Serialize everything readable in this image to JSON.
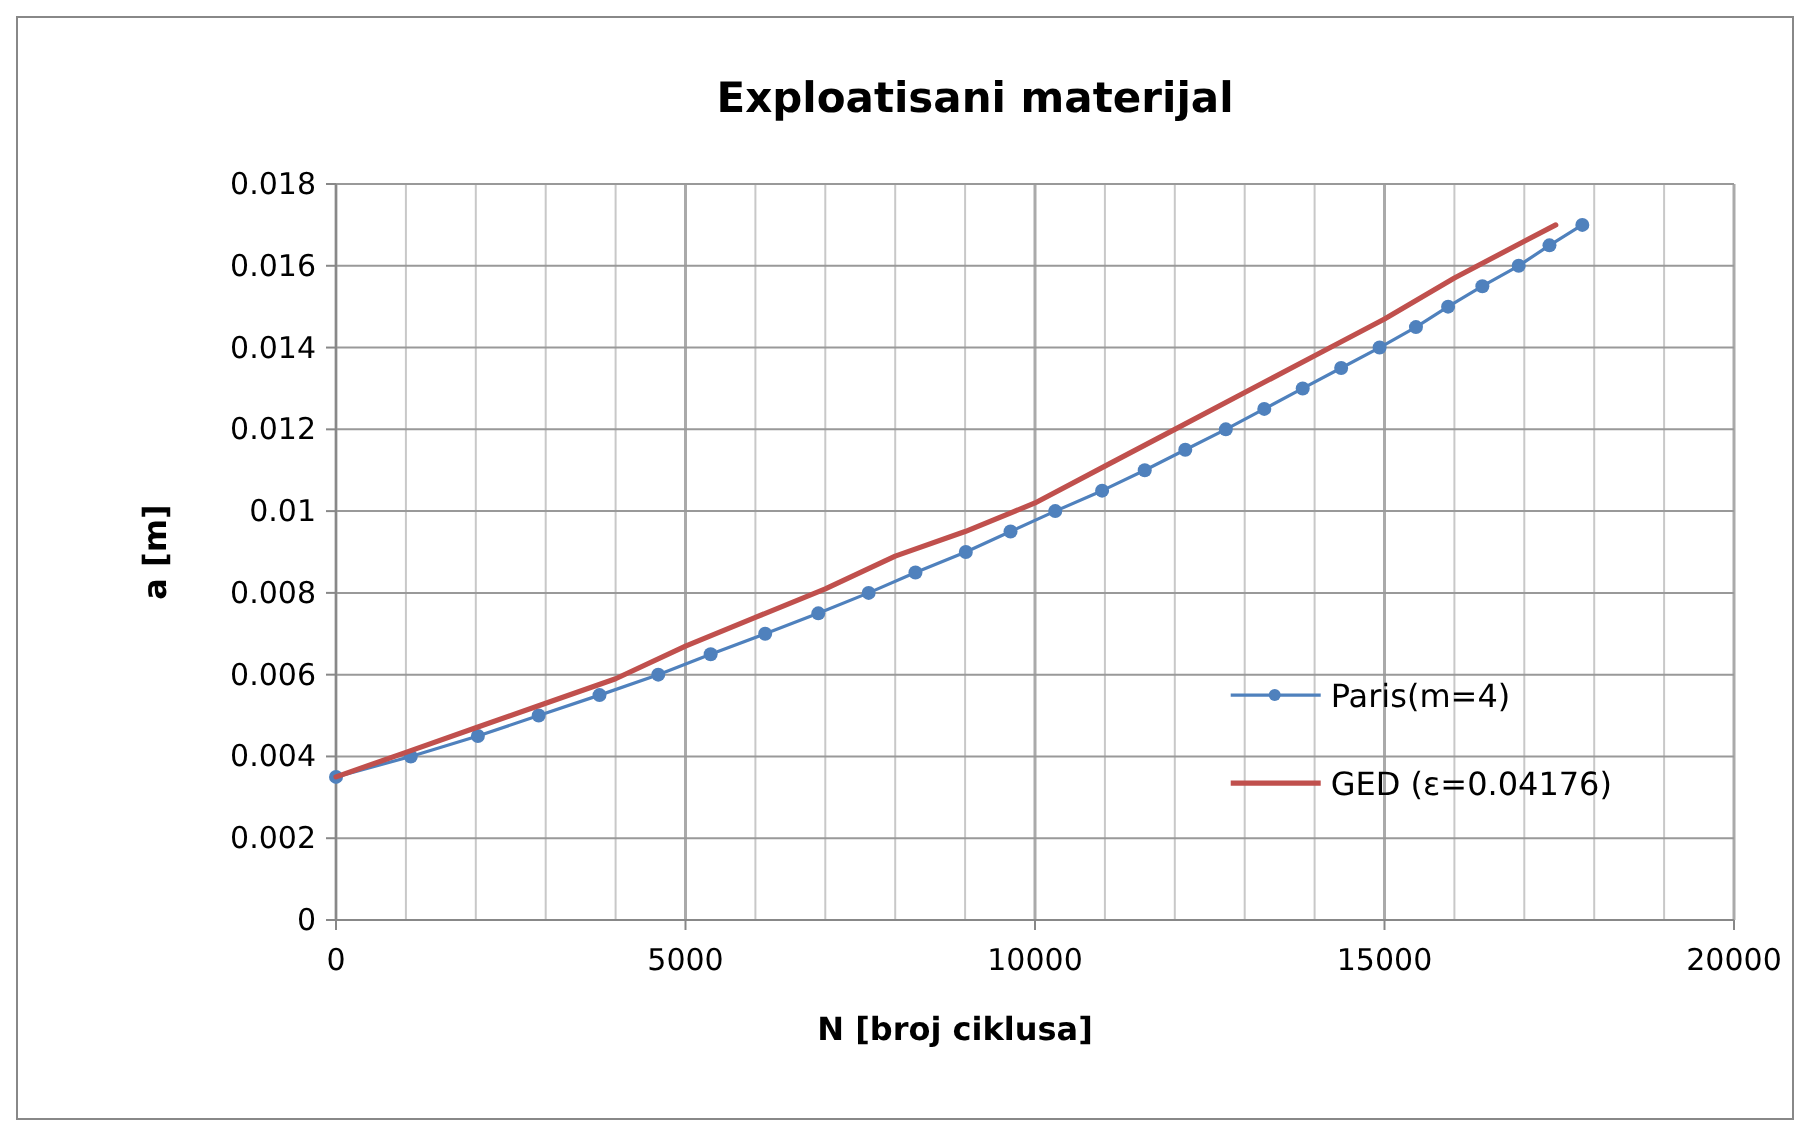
{
  "chart_data": {
    "type": "line",
    "title": "Exploatisani materijal",
    "xlabel": "N [broj ciklusa]",
    "ylabel": "a [m]",
    "xlim": [
      0,
      20000
    ],
    "ylim": [
      0,
      0.018
    ],
    "xticks": [
      0,
      {
        "value": 1000,
        "label": null
      },
      {
        "value": 2000,
        "label": null
      },
      {
        "value": 3000,
        "label": null
      },
      {
        "value": 4000,
        "label": null
      },
      5000,
      {
        "value": 6000,
        "label": null
      },
      {
        "value": 7000,
        "label": null
      },
      {
        "value": 8000,
        "label": null
      },
      {
        "value": 9000,
        "label": null
      },
      10000,
      {
        "value": 11000,
        "label": null
      },
      {
        "value": 12000,
        "label": null
      },
      {
        "value": 13000,
        "label": null
      },
      {
        "value": 14000,
        "label": null
      },
      15000,
      {
        "value": 16000,
        "label": null
      },
      {
        "value": 17000,
        "label": null
      },
      {
        "value": 18000,
        "label": null
      },
      {
        "value": 19000,
        "label": null
      },
      20000
    ],
    "yticks": [
      0,
      0.002,
      0.004,
      0.006,
      0.008,
      0.01,
      0.012,
      0.014,
      0.016,
      0.018
    ],
    "grid": true,
    "legend": "right",
    "series": [
      {
        "name": "Paris(m=4)",
        "color": "#4f81bd",
        "marker": "circle",
        "x": [
          0,
          1070,
          2030,
          2900,
          3770,
          4610,
          5360,
          6140,
          6900,
          7620,
          8290,
          9010,
          9650,
          10290,
          10960,
          11570,
          12150,
          12730,
          13280,
          13830,
          14380,
          14930,
          15450,
          15910,
          16400,
          16920,
          17360,
          17830
        ],
        "values": [
          0.0035,
          0.004,
          0.0045,
          0.005,
          0.0055,
          0.006,
          0.0065,
          0.007,
          0.0075,
          0.008,
          0.0085,
          0.009,
          0.0095,
          0.01,
          0.0105,
          0.011,
          0.0115,
          0.012,
          0.0125,
          0.013,
          0.0135,
          0.014,
          0.0145,
          0.015,
          0.0155,
          0.016,
          0.0165,
          0.017
        ]
      },
      {
        "name": "GED (ε=0.04176)",
        "color": "#c0504d",
        "marker": "none",
        "x": [
          0,
          1000,
          2000,
          3000,
          4000,
          5000,
          6000,
          7000,
          8000,
          9000,
          10000,
          11000,
          12000,
          13000,
          14000,
          15000,
          16000,
          17000,
          17450
        ],
        "values": [
          0.0035,
          0.0041,
          0.0047,
          0.0053,
          0.0059,
          0.0067,
          0.0074,
          0.0081,
          0.0089,
          0.0095,
          0.0102,
          0.0111,
          0.012,
          0.0129,
          0.0138,
          0.0147,
          0.0157,
          0.0166,
          0.017
        ]
      }
    ]
  }
}
